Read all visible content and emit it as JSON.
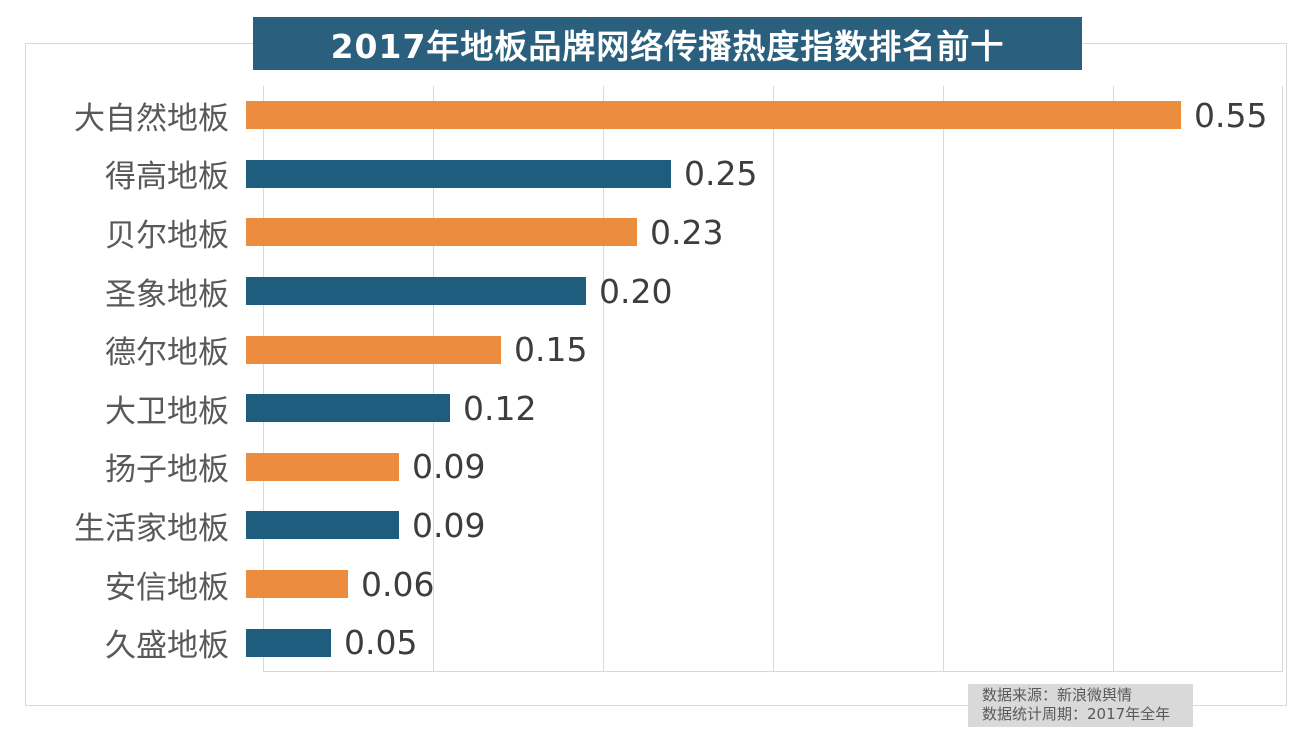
{
  "chart_data": {
    "type": "bar",
    "orientation": "horizontal",
    "title": "2017年地板品牌网络传播热度指数排名前十",
    "categories": [
      "大自然地板",
      "得高地板",
      "贝尔地板",
      "圣象地板",
      "德尔地板",
      "大卫地板",
      "扬子地板",
      "生活家地板",
      "安信地板",
      "久盛地板"
    ],
    "values": [
      0.55,
      0.25,
      0.23,
      0.2,
      0.15,
      0.12,
      0.09,
      0.09,
      0.06,
      0.05
    ],
    "value_labels": [
      "0.55",
      "0.25",
      "0.23",
      "0.20",
      "0.15",
      "0.12",
      "0.09",
      "0.09",
      "0.06",
      "0.05"
    ],
    "bar_colors_hex": [
      "#ec8c3e",
      "#1f5d7e",
      "#ec8c3e",
      "#1f5d7e",
      "#ec8c3e",
      "#1f5d7e",
      "#ec8c3e",
      "#1f5d7e",
      "#ec8c3e",
      "#1f5d7e"
    ],
    "xlabel": "",
    "ylabel": "",
    "xlim": [
      0,
      0.6
    ],
    "gridline_step": 0.1,
    "grid": "vertical-only",
    "legend": "none",
    "value_labels_position": "end-of-bar"
  },
  "colors": {
    "orange_bar": "#ec8c3e",
    "blue_bar": "#1f5d7e",
    "title_background": "#2a5f7d",
    "title_text": "#ffffff",
    "category_label_text": "#595959",
    "value_label_text": "#3d3d3d",
    "gridline": "#d9d9d9",
    "frame_border": "#d9d9d9",
    "note_background": "#d9d9d9",
    "note_text": "#595959"
  },
  "footer": {
    "line1": "数据来源：新浪微舆情",
    "line2": "数据统计周期：2017年全年"
  }
}
